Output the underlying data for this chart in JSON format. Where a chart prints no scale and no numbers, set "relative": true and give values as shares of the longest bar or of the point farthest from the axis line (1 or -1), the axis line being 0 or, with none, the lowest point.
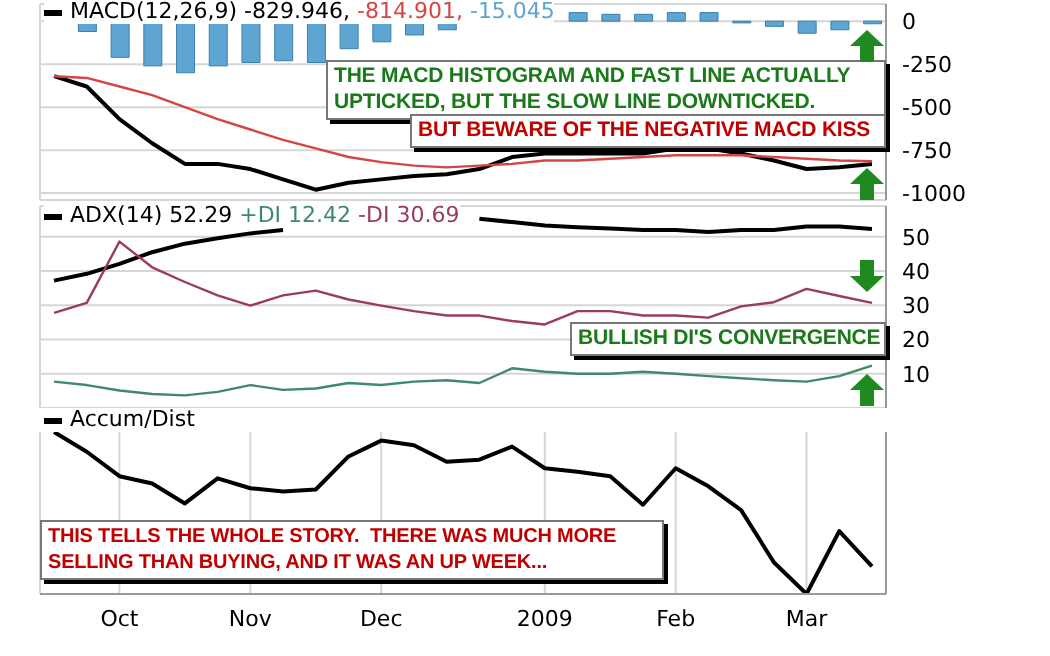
{
  "chart_data": [
    {
      "type": "line",
      "x": [
        "2008-09-22",
        "2008-09-29",
        "2008-10-06",
        "2008-10-13",
        "2008-10-20",
        "2008-10-27",
        "2008-11-03",
        "2008-11-10",
        "2008-11-17",
        "2008-11-24",
        "2008-12-01",
        "2008-12-08",
        "2008-12-15",
        "2008-12-22",
        "2008-12-29",
        "2009-01-05",
        "2009-01-12",
        "2009-01-19",
        "2009-01-26",
        "2009-02-02",
        "2009-02-09",
        "2009-02-16",
        "2009-02-23",
        "2009-03-02",
        "2009-03-09",
        "2009-03-16"
      ],
      "series": [
        {
          "name": "MACD(12,26,9) -829.946,",
          "color": "#000000",
          "values": [
            -320,
            -380,
            -570,
            -710,
            -830,
            -830,
            -860,
            -920,
            -980,
            -940,
            -920,
            -900,
            -890,
            -860,
            -790,
            -770,
            -770,
            -770,
            -770,
            -740,
            -740,
            -770,
            -810,
            -860,
            -850,
            -830
          ]
        },
        {
          "name": "-814.901,",
          "color": "#d64545",
          "values": [
            -320,
            -330,
            -380,
            -430,
            -500,
            -570,
            -630,
            -690,
            -740,
            -790,
            -820,
            -840,
            -850,
            -840,
            -830,
            -810,
            -810,
            -800,
            -790,
            -780,
            -780,
            -780,
            -790,
            -800,
            -810,
            -815
          ]
        },
        {
          "name": "-15.045",
          "type": "bar",
          "color": "#5fa5d2",
          "values": [
            null,
            -60,
            -210,
            -260,
            -300,
            -260,
            -240,
            -230,
            -240,
            -160,
            -120,
            -80,
            -50,
            null,
            null,
            null,
            50,
            40,
            40,
            50,
            50,
            -10,
            -30,
            -70,
            -50,
            -15
          ]
        }
      ],
      "xlim": [
        "2008-09-19",
        "2009-03-19"
      ],
      "xticks": [
        {
          "value": "2008-10-06",
          "label": null
        },
        {
          "value": "2008-11-03",
          "label": null
        },
        {
          "value": "2008-12-01",
          "label": null
        },
        {
          "value": "2009-01-05",
          "label": null
        },
        {
          "value": "2009-02-02",
          "label": null
        },
        {
          "value": "2009-03-02",
          "label": null
        }
      ],
      "ylim": [
        -1040,
        100
      ],
      "yticks": [
        0,
        -250,
        -500,
        -750,
        -1000
      ],
      "tick_labels": "y",
      "grid": true,
      "legend": "top left",
      "annotations": [
        "THE MACD HISTOGRAM AND FAST LINE ACTUALLY UPTICKED, BUT THE SLOW LINE DOWNTICKED.",
        "BUT BEWARE OF THE NEGATIVE MACD KISS"
      ]
    },
    {
      "type": "line",
      "x": [
        "2008-09-22",
        "2008-09-29",
        "2008-10-06",
        "2008-10-13",
        "2008-10-20",
        "2008-10-27",
        "2008-11-03",
        "2008-11-10",
        "2008-11-17",
        "2008-11-24",
        "2008-12-01",
        "2008-12-08",
        "2008-12-15",
        "2008-12-22",
        "2008-12-29",
        "2009-01-05",
        "2009-01-12",
        "2009-01-19",
        "2009-01-26",
        "2009-02-02",
        "2009-02-09",
        "2009-02-16",
        "2009-02-23",
        "2009-03-02",
        "2009-03-09",
        "2009-03-16"
      ],
      "series": [
        {
          "name": "ADX(14) 52.29",
          "color": "#000000",
          "values": [
            37.2,
            39.2,
            42.1,
            45.5,
            48,
            49.6,
            51,
            52,
            null,
            null,
            null,
            null,
            null,
            55.3,
            54.3,
            53.3,
            52.8,
            52.4,
            52,
            52,
            51.4,
            52,
            52,
            53,
            53,
            52.3
          ]
        },
        {
          "name": "+DI 12.42",
          "color": "#3f8a6a",
          "values": [
            7.7,
            6.7,
            5.1,
            4.1,
            3.7,
            4.7,
            6.7,
            5.3,
            5.7,
            7.3,
            6.7,
            7.7,
            8.1,
            7.3,
            11.6,
            10.6,
            10,
            10,
            10.6,
            10,
            9.3,
            8.7,
            8.1,
            7.7,
            9.3,
            12.4
          ]
        },
        {
          "name": "-DI 30.69",
          "color": "#9b3a62",
          "values": [
            27.8,
            30.7,
            48.6,
            41.1,
            36.8,
            32.9,
            29.9,
            32.9,
            34.3,
            31.7,
            29.9,
            28.3,
            27,
            27,
            25.4,
            24.4,
            28.3,
            28.3,
            27,
            27,
            26.4,
            29.7,
            30.9,
            34.8,
            32.7,
            30.7
          ]
        }
      ],
      "xlim": [
        "2008-09-19",
        "2009-03-19"
      ],
      "xticks": [
        {
          "value": "2008-10-06",
          "label": null
        },
        {
          "value": "2008-11-03",
          "label": null
        },
        {
          "value": "2008-12-01",
          "label": null
        },
        {
          "value": "2009-01-05",
          "label": null
        },
        {
          "value": "2009-02-02",
          "label": null
        },
        {
          "value": "2009-03-02",
          "label": null
        }
      ],
      "ylim": [
        0,
        59
      ],
      "yticks": [
        10,
        20,
        30,
        40,
        50
      ],
      "tick_labels": "y",
      "grid": true,
      "legend": "top left",
      "annotations": [
        "BULLISH DI'S CONVERGENCE"
      ]
    },
    {
      "type": "line",
      "relative": true,
      "x": [
        "2008-09-22",
        "2008-09-29",
        "2008-10-06",
        "2008-10-13",
        "2008-10-20",
        "2008-10-27",
        "2008-11-03",
        "2008-11-10",
        "2008-11-17",
        "2008-11-24",
        "2008-12-01",
        "2008-12-08",
        "2008-12-15",
        "2008-12-22",
        "2008-12-29",
        "2009-01-05",
        "2009-01-12",
        "2009-01-19",
        "2009-01-26",
        "2009-02-02",
        "2009-02-09",
        "2009-02-16",
        "2009-02-23",
        "2009-03-02",
        "2009-03-09",
        "2009-03-16"
      ],
      "series": [
        {
          "name": "Accum/Dist",
          "color": "#000000",
          "values": [
            1,
            0.878,
            0.727,
            0.682,
            0.559,
            0.714,
            0.653,
            0.633,
            0.645,
            0.849,
            0.947,
            0.918,
            0.816,
            0.829,
            0.91,
            0.776,
            0.755,
            0.727,
            0.551,
            0.776,
            0.665,
            0.518,
            0.196,
            0,
            0.388,
            0.171
          ]
        }
      ],
      "xlim": [
        "2008-09-19",
        "2009-03-19"
      ],
      "xticks": [
        {
          "value": "2008-10-06",
          "label": "Oct"
        },
        {
          "value": "2008-11-03",
          "label": "Nov"
        },
        {
          "value": "2008-12-01",
          "label": "Dec"
        },
        {
          "value": "2009-01-05",
          "label": "2009"
        },
        {
          "value": "2009-02-02",
          "label": "Feb"
        },
        {
          "value": "2009-03-02",
          "label": "Mar"
        }
      ],
      "tick_labels": "x",
      "grid": "x",
      "legend": "top left",
      "annotations": [
        "THIS TELLS THE WHOLE STORY.  THERE WAS MUCH MORE SELLING THAN BUYING, AND IT WAS AN UP WEEK..."
      ]
    }
  ]
}
